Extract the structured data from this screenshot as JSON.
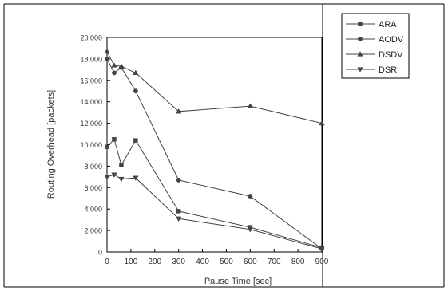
{
  "chart_data": {
    "type": "line",
    "title": "",
    "xlabel": "Pause Time [sec]",
    "ylabel": "Routing Overhead [packets]",
    "xlim": [
      0,
      900
    ],
    "ylim": [
      0,
      20000
    ],
    "x_ticks": [
      0,
      100,
      200,
      300,
      400,
      500,
      600,
      700,
      800,
      900
    ],
    "x_tick_labels": [
      "0",
      "100",
      "200",
      "300",
      "400",
      "500",
      "600",
      "700",
      "800",
      "900"
    ],
    "y_ticks": [
      0,
      2000,
      4000,
      6000,
      8000,
      10000,
      12000,
      14000,
      16000,
      18000,
      20000
    ],
    "y_tick_labels": [
      "0",
      "2.000",
      "4.000",
      "6.000",
      "8.000",
      "10.000",
      "12.000",
      "14.000",
      "16.000",
      "18.000",
      "20.000"
    ],
    "legend_position": "top-right",
    "grid": false,
    "line_color": "#444444",
    "series": [
      {
        "name": "ARA",
        "marker": "square",
        "x": [
          0,
          30,
          60,
          120,
          300,
          600,
          900
        ],
        "y": [
          9800,
          10500,
          8100,
          10400,
          3800,
          2300,
          400
        ]
      },
      {
        "name": "AODV",
        "marker": "circle",
        "x": [
          0,
          30,
          60,
          120,
          300,
          600,
          900
        ],
        "y": [
          18000,
          16700,
          17200,
          15000,
          6700,
          5200,
          300
        ]
      },
      {
        "name": "DSDV",
        "marker": "triangle-up",
        "x": [
          0,
          30,
          60,
          120,
          300,
          600,
          900
        ],
        "y": [
          18700,
          17400,
          17300,
          16700,
          13100,
          13600,
          12000
        ]
      },
      {
        "name": "DSR",
        "marker": "triangle-down",
        "x": [
          0,
          30,
          60,
          120,
          300,
          600,
          900
        ],
        "y": [
          7000,
          7200,
          6800,
          6900,
          3100,
          2100,
          300
        ]
      }
    ]
  }
}
